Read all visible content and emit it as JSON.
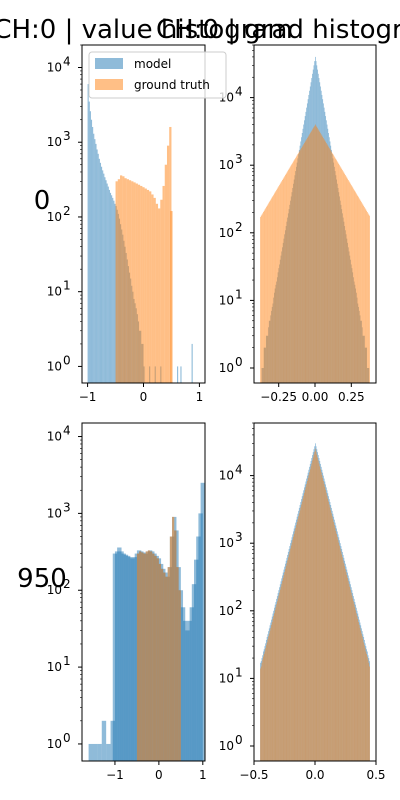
{
  "figure": {
    "titles": [
      "CH:0 | value histogram",
      "CH:0 | grad histogram"
    ],
    "row_labels": [
      "0",
      "950"
    ]
  },
  "legend": {
    "items": [
      "model",
      "ground truth"
    ],
    "placement": "upper-right"
  },
  "colors": {
    "model": "#1f77b4",
    "ground_truth": "#ff7f0e",
    "alpha": 0.5
  },
  "chart_data": [
    {
      "type": "bar",
      "panel": "row 0 value histogram",
      "yscale": "log",
      "xlim": [
        -1.1,
        1.1
      ],
      "ylim": [
        0.6,
        20000
      ],
      "xticks": [
        "-1",
        "0",
        "1"
      ],
      "yticks": [
        "10^0",
        "10^1",
        "10^2",
        "10^3",
        "10^4"
      ],
      "series": [
        {
          "name": "model",
          "bins": [
            [
              -1.0,
              6000
            ],
            [
              -0.98,
              3500
            ],
            [
              -0.96,
              2600
            ],
            [
              -0.94,
              2000
            ],
            [
              -0.92,
              1600
            ],
            [
              -0.9,
              1300
            ],
            [
              -0.88,
              1100
            ],
            [
              -0.86,
              950
            ],
            [
              -0.84,
              800
            ],
            [
              -0.82,
              700
            ],
            [
              -0.8,
              600
            ],
            [
              -0.78,
              530
            ],
            [
              -0.76,
              470
            ],
            [
              -0.74,
              420
            ],
            [
              -0.72,
              380
            ],
            [
              -0.7,
              340
            ],
            [
              -0.68,
              310
            ],
            [
              -0.66,
              280
            ],
            [
              -0.64,
              255
            ],
            [
              -0.62,
              230
            ],
            [
              -0.6,
              210
            ],
            [
              -0.58,
              195
            ],
            [
              -0.56,
              180
            ],
            [
              -0.54,
              165
            ],
            [
              -0.52,
              150
            ],
            [
              -0.5,
              140
            ],
            [
              -0.48,
              125
            ],
            [
              -0.46,
              110
            ],
            [
              -0.44,
              95
            ],
            [
              -0.42,
              80
            ],
            [
              -0.4,
              68
            ],
            [
              -0.38,
              58
            ],
            [
              -0.36,
              48
            ],
            [
              -0.34,
              40
            ],
            [
              -0.32,
              33
            ],
            [
              -0.3,
              27
            ],
            [
              -0.28,
              22
            ],
            [
              -0.26,
              18
            ],
            [
              -0.24,
              15
            ],
            [
              -0.22,
              12
            ],
            [
              -0.2,
              10
            ],
            [
              -0.18,
              8
            ],
            [
              -0.16,
              7
            ],
            [
              -0.14,
              6
            ],
            [
              -0.12,
              5
            ],
            [
              -0.1,
              4
            ],
            [
              -0.08,
              3
            ],
            [
              -0.06,
              3
            ],
            [
              -0.04,
              2
            ],
            [
              -0.02,
              2
            ],
            [
              0.0,
              1
            ],
            [
              0.1,
              1
            ],
            [
              0.2,
              1
            ],
            [
              0.3,
              1
            ],
            [
              0.6,
              1
            ],
            [
              0.66,
              1
            ],
            [
              0.86,
              2
            ]
          ]
        },
        {
          "name": "ground truth",
          "bins": [
            [
              -0.5,
              300
            ],
            [
              -0.46,
              320
            ],
            [
              -0.42,
              360
            ],
            [
              -0.38,
              350
            ],
            [
              -0.34,
              330
            ],
            [
              -0.3,
              320
            ],
            [
              -0.26,
              310
            ],
            [
              -0.22,
              300
            ],
            [
              -0.18,
              290
            ],
            [
              -0.14,
              280
            ],
            [
              -0.1,
              270
            ],
            [
              -0.06,
              260
            ],
            [
              -0.02,
              250
            ],
            [
              0.02,
              240
            ],
            [
              0.06,
              230
            ],
            [
              0.1,
              220
            ],
            [
              0.14,
              200
            ],
            [
              0.18,
              180
            ],
            [
              0.22,
              150
            ],
            [
              0.26,
              130
            ],
            [
              0.3,
              170
            ],
            [
              0.34,
              260
            ],
            [
              0.38,
              500
            ],
            [
              0.42,
              900
            ],
            [
              0.46,
              1600
            ],
            [
              0.48,
              120
            ]
          ]
        }
      ]
    },
    {
      "type": "bar",
      "panel": "row 0 grad histogram",
      "yscale": "log",
      "xlim": [
        -0.42,
        0.42
      ],
      "ylim": [
        0.6,
        60000
      ],
      "xticks": [
        "-0.25",
        "0.00",
        "0.25"
      ],
      "yticks": [
        "10^0",
        "10^1",
        "10^2",
        "10^3",
        "10^4"
      ],
      "series": [
        {
          "name": "model",
          "peak": 40000,
          "spread": 0.035
        },
        {
          "name": "ground truth",
          "peak": 4000,
          "spread": 0.12
        }
      ]
    },
    {
      "type": "bar",
      "panel": "row 950 value histogram",
      "yscale": "log",
      "xlim": [
        -1.75,
        1.05
      ],
      "ylim": [
        0.6,
        15000
      ],
      "xticks": [
        "-1",
        "0",
        "1"
      ],
      "yticks": [
        "10^0",
        "10^1",
        "10^2",
        "10^3",
        "10^4"
      ],
      "series": [
        {
          "name": "model",
          "bins": [
            [
              -1.6,
              1
            ],
            [
              -1.5,
              1
            ],
            [
              -1.4,
              1
            ],
            [
              -1.3,
              2
            ],
            [
              -1.2,
              1
            ],
            [
              -1.1,
              2
            ],
            [
              -1.05,
              300
            ],
            [
              -1.0,
              320
            ],
            [
              -0.95,
              360
            ],
            [
              -0.9,
              320
            ],
            [
              -0.85,
              300
            ],
            [
              -0.8,
              290
            ],
            [
              -0.75,
              280
            ],
            [
              -0.7,
              270
            ],
            [
              -0.65,
              260
            ],
            [
              -0.6,
              270
            ],
            [
              -0.55,
              300
            ],
            [
              -0.5,
              330
            ],
            [
              -0.45,
              320
            ],
            [
              -0.4,
              310
            ],
            [
              -0.35,
              300
            ],
            [
              -0.3,
              320
            ],
            [
              -0.25,
              330
            ],
            [
              -0.2,
              320
            ],
            [
              -0.15,
              300
            ],
            [
              -0.1,
              280
            ],
            [
              -0.05,
              260
            ],
            [
              0.0,
              220
            ],
            [
              0.05,
              190
            ],
            [
              0.1,
              170
            ],
            [
              0.15,
              150
            ],
            [
              0.2,
              200
            ],
            [
              0.25,
              500
            ],
            [
              0.3,
              900
            ],
            [
              0.35,
              600
            ],
            [
              0.4,
              200
            ],
            [
              0.45,
              100
            ],
            [
              0.5,
              60
            ],
            [
              0.55,
              40
            ],
            [
              0.6,
              30
            ],
            [
              0.65,
              40
            ],
            [
              0.7,
              60
            ],
            [
              0.75,
              120
            ],
            [
              0.8,
              250
            ],
            [
              0.85,
              500
            ],
            [
              0.9,
              1000
            ],
            [
              0.95,
              2500
            ]
          ]
        },
        {
          "name": "ground truth",
          "bins": [
            [
              -0.5,
              300
            ],
            [
              -0.45,
              320
            ],
            [
              -0.4,
              310
            ],
            [
              -0.35,
              300
            ],
            [
              -0.3,
              320
            ],
            [
              -0.25,
              330
            ],
            [
              -0.2,
              320
            ],
            [
              -0.15,
              300
            ],
            [
              -0.1,
              280
            ],
            [
              -0.05,
              260
            ],
            [
              0.0,
              220
            ],
            [
              0.05,
              190
            ],
            [
              0.1,
              170
            ],
            [
              0.15,
              150
            ],
            [
              0.2,
              200
            ],
            [
              0.25,
              500
            ],
            [
              0.3,
              900
            ],
            [
              0.35,
              600
            ],
            [
              0.4,
              200
            ],
            [
              0.45,
              100
            ]
          ]
        }
      ]
    },
    {
      "type": "bar",
      "panel": "row 950 grad histogram",
      "yscale": "log",
      "xlim": [
        -0.5,
        0.5
      ],
      "ylim": [
        0.6,
        60000
      ],
      "xticks": [
        "-0.5",
        "0.0",
        "0.5"
      ],
      "yticks": [
        "10^0",
        "10^1",
        "10^2",
        "10^3",
        "10^4"
      ],
      "series": [
        {
          "name": "model",
          "peak": 30000,
          "spread": 0.06
        },
        {
          "name": "ground truth",
          "peak": 25000,
          "spread": 0.06
        }
      ]
    }
  ]
}
